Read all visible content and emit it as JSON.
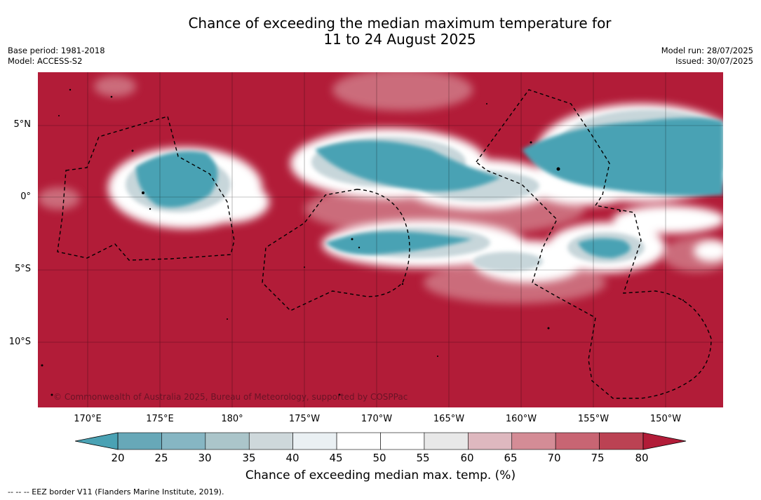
{
  "title": {
    "line1": "Chance of exceeding the median maximum temperature for",
    "line2": "11 to 24 August 2025"
  },
  "meta_left": {
    "base_period": "Base period: 1981-2018",
    "model": "Model: ACCESS-S2"
  },
  "meta_right": {
    "model_run": "Model run: 28/07/2025",
    "issued": "Issued: 30/07/2025"
  },
  "map": {
    "lat_labels": [
      "5°N",
      "0°",
      "5°S",
      "10°S"
    ],
    "lon_labels": [
      "170°E",
      "175°E",
      "180°",
      "175°W",
      "170°W",
      "165°W",
      "160°W",
      "155°W",
      "150°W"
    ],
    "copyright": "© Commonwealth of Australia 2025, Bureau of Meteorology, supported by COSPPac",
    "colors": {
      "above_80": "#b21c38",
      "below_20": "#4aa2b4",
      "neutral": "#ffffff"
    }
  },
  "colorbar": {
    "ticks": [
      "20",
      "25",
      "30",
      "35",
      "40",
      "45",
      "50",
      "55",
      "60",
      "65",
      "70",
      "75",
      "80"
    ],
    "colors": [
      "#67a8b8",
      "#86b6c3",
      "#abc5ca",
      "#ced8db",
      "#eaf0f3",
      "#ffffff",
      "#ffffff",
      "#e8e8e8",
      "#deb8bf",
      "#d48c96",
      "#c86573",
      "#bb4253"
    ],
    "under_color": "#4aa2b4",
    "over_color": "#b21c38",
    "label": "Chance of exceeding median max. temp. (%)"
  },
  "footnote": "--  --  -- EEZ border V11 (Flanders Marine Institute, 2019)."
}
